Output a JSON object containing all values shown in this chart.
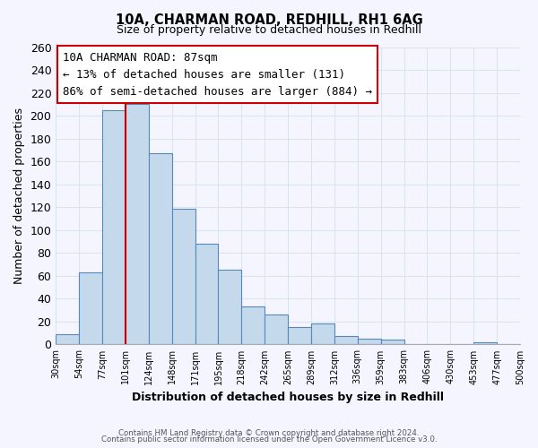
{
  "title1": "10A, CHARMAN ROAD, REDHILL, RH1 6AG",
  "title2": "Size of property relative to detached houses in Redhill",
  "xlabel": "Distribution of detached houses by size in Redhill",
  "ylabel": "Number of detached properties",
  "bin_labels": [
    "30sqm",
    "54sqm",
    "77sqm",
    "101sqm",
    "124sqm",
    "148sqm",
    "171sqm",
    "195sqm",
    "218sqm",
    "242sqm",
    "265sqm",
    "289sqm",
    "312sqm",
    "336sqm",
    "359sqm",
    "383sqm",
    "406sqm",
    "430sqm",
    "453sqm",
    "477sqm",
    "500sqm"
  ],
  "bar_values": [
    9,
    63,
    205,
    210,
    167,
    119,
    88,
    65,
    33,
    26,
    15,
    18,
    7,
    5,
    4,
    0,
    0,
    0,
    2,
    0,
    0
  ],
  "bar_color": "#c5d9ec",
  "bar_edge_color": "#5588bb",
  "highlight_color": "#cc0000",
  "annotation_title": "10A CHARMAN ROAD: 87sqm",
  "annotation_line1": "← 13% of detached houses are smaller (131)",
  "annotation_line2": "86% of semi-detached houses are larger (884) →",
  "annotation_box_color": "#ffffff",
  "annotation_box_edge": "#cc0000",
  "ylim": [
    0,
    260
  ],
  "yticks": [
    0,
    20,
    40,
    60,
    80,
    100,
    120,
    140,
    160,
    180,
    200,
    220,
    240,
    260
  ],
  "footer1": "Contains HM Land Registry data © Crown copyright and database right 2024.",
  "footer2": "Contains public sector information licensed under the Open Government Licence v3.0.",
  "background_color": "#f5f5ff",
  "grid_color": "#d8e4f0"
}
